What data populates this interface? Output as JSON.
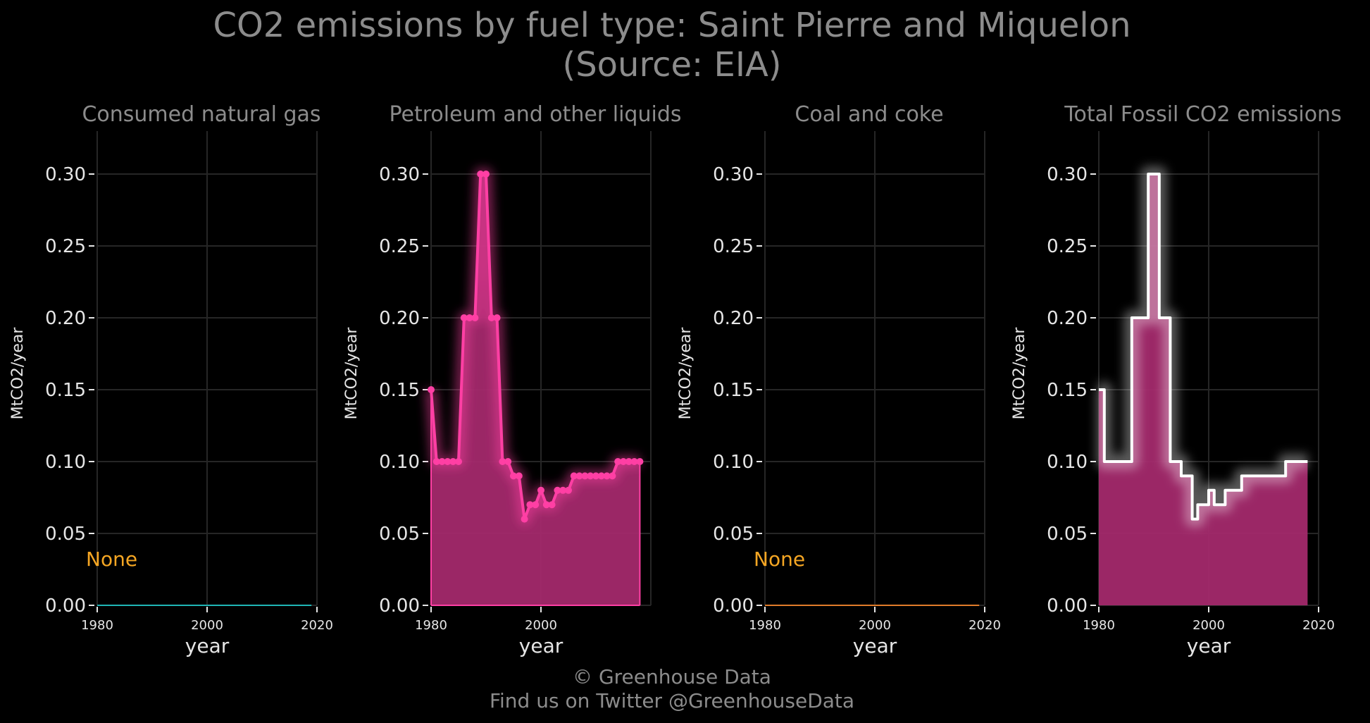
{
  "title": {
    "line1": "CO2 emissions by fuel type: Saint Pierre and Miquelon",
    "line2": "(Source: EIA)"
  },
  "credit": {
    "line1": "© Greenhouse Data",
    "line2": "Find us on Twitter @GreenhouseData"
  },
  "colors": {
    "background": "#000000",
    "grid": "#262626",
    "natural_gas": "#1fb5b5",
    "petroleum": "#ff3fa4",
    "coal": "#e07b2a",
    "total_line": "#ffffff",
    "area_fill": "#a3296b",
    "none_label": "#f5a623"
  },
  "chart_data": [
    {
      "type": "line",
      "title": "Consumed natural gas",
      "xlabel": "year",
      "ylabel": "MtCO2/year",
      "x": [
        1980,
        2019
      ],
      "values": [
        0,
        0
      ],
      "annotation": "None",
      "xlim": [
        1980,
        2020
      ],
      "ylim": [
        0,
        0.33
      ],
      "xticks": [
        "1980",
        "2000",
        "2020"
      ],
      "yticks": [
        "0.00",
        "0.05",
        "0.10",
        "0.15",
        "0.20",
        "0.25",
        "0.30"
      ],
      "grid": true,
      "color_key": "natural_gas"
    },
    {
      "type": "area",
      "title": "Petroleum and other liquids",
      "xlabel": "year",
      "ylabel": "MtCO2/year",
      "x": [
        1980,
        1981,
        1982,
        1983,
        1984,
        1985,
        1986,
        1987,
        1988,
        1989,
        1990,
        1991,
        1992,
        1993,
        1994,
        1995,
        1996,
        1997,
        1998,
        1999,
        2000,
        2001,
        2002,
        2003,
        2004,
        2005,
        2006,
        2007,
        2008,
        2009,
        2010,
        2011,
        2012,
        2013,
        2014,
        2015,
        2016,
        2017,
        2018
      ],
      "values": [
        0.15,
        0.1,
        0.1,
        0.1,
        0.1,
        0.1,
        0.2,
        0.2,
        0.2,
        0.3,
        0.3,
        0.2,
        0.2,
        0.1,
        0.1,
        0.09,
        0.09,
        0.06,
        0.07,
        0.07,
        0.08,
        0.07,
        0.07,
        0.08,
        0.08,
        0.08,
        0.09,
        0.09,
        0.09,
        0.09,
        0.09,
        0.09,
        0.09,
        0.09,
        0.1,
        0.1,
        0.1,
        0.1,
        0.1
      ],
      "markers": true,
      "xlim": [
        1980,
        2020
      ],
      "ylim": [
        0,
        0.33
      ],
      "xticks": [
        "1980",
        "2000"
      ],
      "yticks": [
        "0.00",
        "0.05",
        "0.10",
        "0.15",
        "0.20",
        "0.25",
        "0.30"
      ],
      "grid": true,
      "color_key": "petroleum"
    },
    {
      "type": "line",
      "title": "Coal and coke",
      "xlabel": "year",
      "ylabel": "MtCO2/year",
      "x": [
        1980,
        2019
      ],
      "values": [
        0,
        0
      ],
      "annotation": "None",
      "xlim": [
        1980,
        2020
      ],
      "ylim": [
        0,
        0.33
      ],
      "xticks": [
        "1980",
        "2000",
        "2020"
      ],
      "yticks": [
        "0.00",
        "0.05",
        "0.10",
        "0.15",
        "0.20",
        "0.25",
        "0.30"
      ],
      "grid": true,
      "color_key": "coal"
    },
    {
      "type": "area",
      "title": "Total Fossil CO2 emissions",
      "xlabel": "year",
      "ylabel": "MtCO2/year",
      "x": [
        1980,
        1981,
        1982,
        1983,
        1984,
        1985,
        1986,
        1987,
        1988,
        1989,
        1990,
        1991,
        1992,
        1993,
        1994,
        1995,
        1996,
        1997,
        1998,
        1999,
        2000,
        2001,
        2002,
        2003,
        2004,
        2005,
        2006,
        2007,
        2008,
        2009,
        2010,
        2011,
        2012,
        2013,
        2014,
        2015,
        2016,
        2017,
        2018
      ],
      "values": [
        0.15,
        0.1,
        0.1,
        0.1,
        0.1,
        0.1,
        0.2,
        0.2,
        0.2,
        0.3,
        0.3,
        0.2,
        0.2,
        0.1,
        0.1,
        0.09,
        0.09,
        0.06,
        0.07,
        0.07,
        0.08,
        0.07,
        0.07,
        0.08,
        0.08,
        0.08,
        0.09,
        0.09,
        0.09,
        0.09,
        0.09,
        0.09,
        0.09,
        0.09,
        0.1,
        0.1,
        0.1,
        0.1,
        0.1
      ],
      "step": true,
      "xlim": [
        1980,
        2020
      ],
      "ylim": [
        0,
        0.33
      ],
      "xticks": [
        "1980",
        "2000",
        "2020"
      ],
      "yticks": [
        "0.00",
        "0.05",
        "0.10",
        "0.15",
        "0.20",
        "0.25",
        "0.30"
      ],
      "grid": true,
      "color_key": "total_line"
    }
  ]
}
